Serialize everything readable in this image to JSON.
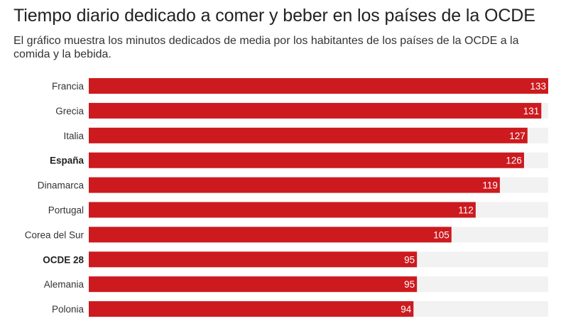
{
  "chart_data": {
    "type": "bar",
    "orientation": "horizontal",
    "title": "Tiempo diario dedicado a comer y beber en los países de la OCDE",
    "subtitle": "El gráfico muestra los minutos dedicados de media por los habitantes de los países de la OCDE a la comida y la bebida.",
    "xlabel": "",
    "ylabel": "",
    "categories": [
      "Francia",
      "Grecia",
      "Italia",
      "España",
      "Dinamarca",
      "Portugal",
      "Corea del Sur",
      "OCDE 28",
      "Alemania",
      "Polonia"
    ],
    "values": [
      133,
      131,
      127,
      126,
      119,
      112,
      105,
      95,
      95,
      94
    ],
    "highlighted": [
      "España",
      "OCDE 28"
    ],
    "xlim": [
      0,
      133
    ],
    "grid": false,
    "legend": "none",
    "colors": {
      "bar": "#cc1a1f",
      "track": "#f2f2f2",
      "value_text": "#ffffff"
    }
  }
}
